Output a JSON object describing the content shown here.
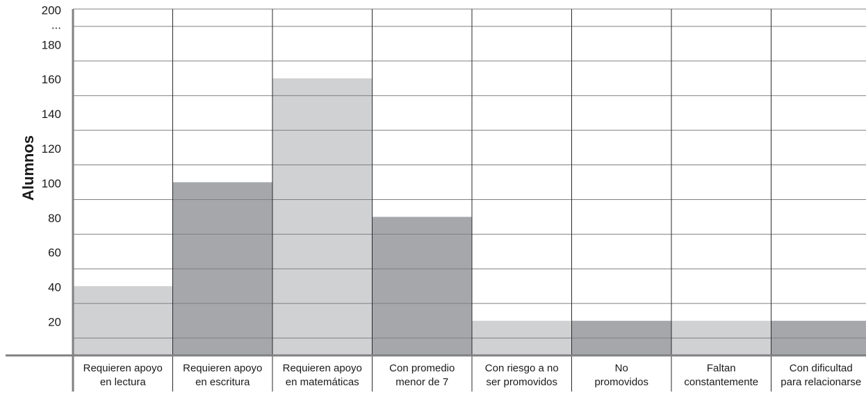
{
  "chart_data": {
    "type": "bar",
    "ylabel": "Alumnos",
    "xlabel": "",
    "ylim": [
      10,
      210
    ],
    "yticks": [
      20,
      40,
      60,
      80,
      100,
      120,
      140,
      160,
      180,
      200
    ],
    "ytick_top_label": "...",
    "grid": true,
    "categories": [
      [
        "Requieren apoyo",
        "en lectura"
      ],
      [
        "Requieren apoyo",
        "en escritura"
      ],
      [
        "Requieren apoyo",
        "en matemáticas"
      ],
      [
        "Con promedio",
        "menor de 7"
      ],
      [
        "Con riesgo a no",
        "ser promovidos"
      ],
      [
        "No",
        "promovidos"
      ],
      [
        "Faltan",
        "constantemente"
      ],
      [
        "Con dificultad",
        "para relacionarse"
      ]
    ],
    "values": [
      50,
      110,
      170,
      90,
      30,
      30,
      30,
      30
    ],
    "colors": {
      "light_bar": "#d0d1d3",
      "dark_bar": "#a6a7aa",
      "grid": "#7f7f7f",
      "axis": "#808080"
    }
  }
}
